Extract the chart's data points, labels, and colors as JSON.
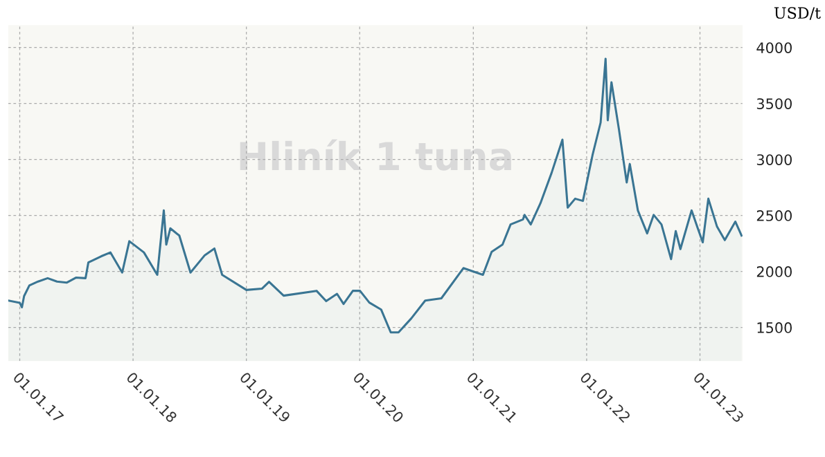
{
  "chart_data": {
    "type": "area",
    "title": "Hliník 1 tuna",
    "ylabel": "USD/t",
    "x": [
      "2016-11-25",
      "2017-01-01",
      "2017-01-08",
      "2017-01-15",
      "2017-02-01",
      "2017-03-01",
      "2017-04-01",
      "2017-05-01",
      "2017-06-01",
      "2017-07-01",
      "2017-08-01",
      "2017-08-10",
      "2017-09-20",
      "2017-10-20",
      "2017-11-27",
      "2017-12-20",
      "2018-02-05",
      "2018-03-20",
      "2018-04-10",
      "2018-04-18",
      "2018-05-01",
      "2018-05-30",
      "2018-07-05",
      "2018-08-20",
      "2018-09-20",
      "2018-10-15",
      "2019-01-01",
      "2019-02-20",
      "2019-03-15",
      "2019-05-01",
      "2019-08-15",
      "2019-09-15",
      "2019-10-20",
      "2019-11-10",
      "2019-12-10",
      "2020-01-02",
      "2020-02-01",
      "2020-03-10",
      "2020-04-10",
      "2020-05-05",
      "2020-06-15",
      "2020-07-30",
      "2020-09-20",
      "2020-11-30",
      "2021-02-01",
      "2021-03-01",
      "2021-04-05",
      "2021-05-01",
      "2021-06-10",
      "2021-06-15",
      "2021-07-05",
      "2021-08-05",
      "2021-09-10",
      "2021-10-15",
      "2021-11-01",
      "2021-11-25",
      "2021-12-20",
      "2022-01-20",
      "2022-02-15",
      "2022-03-03",
      "2022-03-10",
      "2022-03-22",
      "2022-04-15",
      "2022-05-10",
      "2022-05-20",
      "2022-06-15",
      "2022-07-15",
      "2022-08-05",
      "2022-08-30",
      "2022-09-30",
      "2022-10-15",
      "2022-10-30",
      "2022-12-05",
      "2022-12-25",
      "2023-01-10",
      "2023-01-28",
      "2023-02-25",
      "2023-03-22",
      "2023-04-25",
      "2023-05-15"
    ],
    "series": [
      {
        "color": "#3a7593",
        "values": [
          1740,
          1720,
          1680,
          1780,
          1875,
          1910,
          1940,
          1910,
          1900,
          1945,
          1940,
          2080,
          2135,
          2170,
          1990,
          2270,
          2170,
          1970,
          2545,
          2240,
          2385,
          2320,
          1990,
          2145,
          2205,
          1970,
          1835,
          1846,
          1908,
          1784,
          1827,
          1735,
          1800,
          1710,
          1827,
          1827,
          1722,
          1660,
          1456,
          1456,
          1580,
          1740,
          1760,
          2030,
          1970,
          2175,
          2240,
          2420,
          2465,
          2505,
          2420,
          2608,
          2880,
          3177,
          2570,
          2650,
          2630,
          3040,
          3330,
          3900,
          3350,
          3690,
          3270,
          2795,
          2960,
          2545,
          2340,
          2505,
          2420,
          2110,
          2360,
          2200,
          2545,
          2385,
          2260,
          2650,
          2400,
          2280,
          2445,
          2320
        ]
      }
    ],
    "xlim": [
      "2016-11-25",
      "2023-05-18"
    ],
    "xticks": [
      {
        "value": "2017-01-01",
        "label": "01.01.17"
      },
      {
        "value": "2018-01-01",
        "label": "01.01.18"
      },
      {
        "value": "2019-01-01",
        "label": "01.01.19"
      },
      {
        "value": "2020-01-01",
        "label": "01.01.20"
      },
      {
        "value": "2021-01-01",
        "label": "01.01.21"
      },
      {
        "value": "2022-01-01",
        "label": "01.01.22"
      },
      {
        "value": "2023-01-01",
        "label": "01.01.23"
      }
    ],
    "ylim": [
      1200,
      4200
    ],
    "yticks": [
      1500,
      2000,
      2500,
      3000,
      3500,
      4000
    ],
    "grid": true,
    "line_style": "solid"
  }
}
